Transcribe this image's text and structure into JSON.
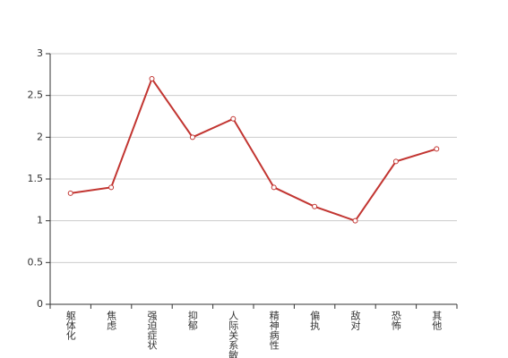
{
  "chart_data": {
    "type": "line",
    "categories": [
      "躯体化",
      "焦虑",
      "强迫症状",
      "抑郁",
      "人际关系敏感",
      "精神病性",
      "偏执",
      "敌对",
      "恐怖",
      "其他"
    ],
    "series": [
      {
        "color": "#c23531",
        "values": [
          1.33,
          1.4,
          2.7,
          2.0,
          2.22,
          1.4,
          1.17,
          1.0,
          1.71,
          1.86
        ]
      }
    ],
    "ylim": [
      0,
      3
    ],
    "yticks": [
      0,
      0.5,
      1,
      1.5,
      2,
      2.5,
      3
    ],
    "grid": true
  }
}
